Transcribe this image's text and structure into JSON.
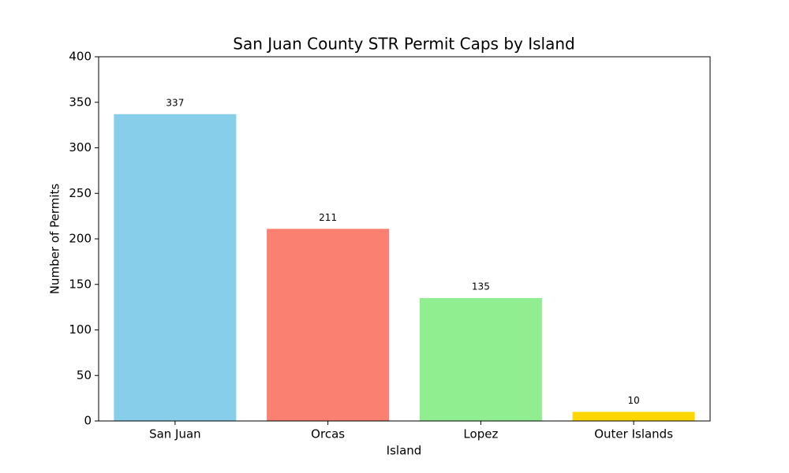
{
  "chart_data": {
    "type": "bar",
    "title": "San Juan County STR Permit Caps by Island",
    "xlabel": "Island",
    "ylabel": "Number of Permits",
    "categories": [
      "San Juan",
      "Orcas",
      "Lopez",
      "Outer Islands"
    ],
    "values": [
      337,
      211,
      135,
      10
    ],
    "colors": [
      "#87ceeb",
      "#fa8072",
      "#90ee90",
      "#ffd700"
    ],
    "ylim": [
      0,
      400
    ],
    "yticks": [
      0,
      50,
      100,
      150,
      200,
      250,
      300,
      350,
      400
    ],
    "grid": false
  }
}
